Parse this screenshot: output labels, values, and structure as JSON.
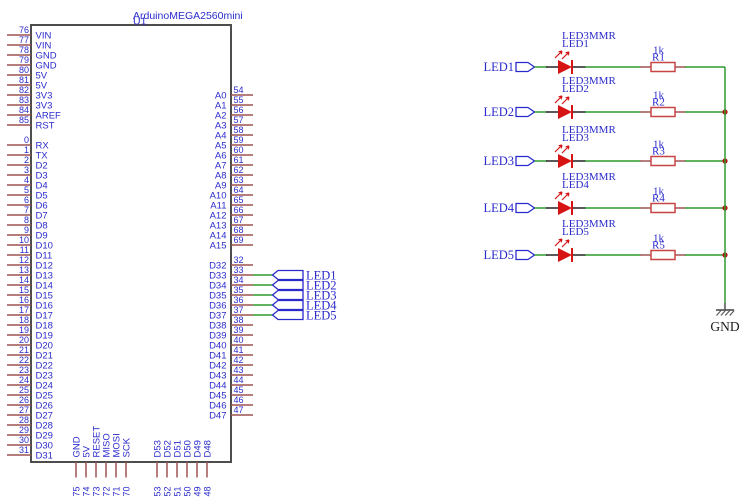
{
  "schematic": {
    "component": {
      "title": "ArduinoMEGA2560mini",
      "refdes": "U1"
    },
    "pins": {
      "left_power": [
        {
          "num": "76",
          "name": "VIN"
        },
        {
          "num": "77",
          "name": "VIN"
        },
        {
          "num": "78",
          "name": "GND"
        },
        {
          "num": "79",
          "name": "GND"
        },
        {
          "num": "80",
          "name": "5V"
        },
        {
          "num": "81",
          "name": "5V"
        },
        {
          "num": "82",
          "name": "3V3"
        },
        {
          "num": "83",
          "name": "3V3"
        },
        {
          "num": "84",
          "name": "AREF"
        },
        {
          "num": "85",
          "name": "RST"
        }
      ],
      "left_digital": [
        {
          "num": "0",
          "name": "RX"
        },
        {
          "num": "1",
          "name": "TX"
        },
        {
          "num": "2",
          "name": "D2"
        },
        {
          "num": "3",
          "name": "D3"
        },
        {
          "num": "4",
          "name": "D4"
        },
        {
          "num": "5",
          "name": "D5"
        },
        {
          "num": "6",
          "name": "D6"
        },
        {
          "num": "7",
          "name": "D7"
        },
        {
          "num": "8",
          "name": "D8"
        },
        {
          "num": "9",
          "name": "D9"
        },
        {
          "num": "10",
          "name": "D10"
        },
        {
          "num": "11",
          "name": "D11"
        },
        {
          "num": "12",
          "name": "D12"
        },
        {
          "num": "13",
          "name": "D13"
        },
        {
          "num": "14",
          "name": "D14"
        },
        {
          "num": "15",
          "name": "D15"
        },
        {
          "num": "16",
          "name": "D16"
        },
        {
          "num": "17",
          "name": "D17"
        },
        {
          "num": "18",
          "name": "D18"
        },
        {
          "num": "19",
          "name": "D19"
        },
        {
          "num": "20",
          "name": "D20"
        },
        {
          "num": "21",
          "name": "D21"
        },
        {
          "num": "22",
          "name": "D22"
        },
        {
          "num": "23",
          "name": "D23"
        },
        {
          "num": "24",
          "name": "D24"
        },
        {
          "num": "25",
          "name": "D25"
        },
        {
          "num": "26",
          "name": "D26"
        },
        {
          "num": "27",
          "name": "D27"
        },
        {
          "num": "28",
          "name": "D28"
        },
        {
          "num": "29",
          "name": "D29"
        },
        {
          "num": "30",
          "name": "D30"
        },
        {
          "num": "31",
          "name": "D31"
        }
      ],
      "right_analog": [
        {
          "num": "54",
          "name": "A0"
        },
        {
          "num": "55",
          "name": "A1"
        },
        {
          "num": "56",
          "name": "A2"
        },
        {
          "num": "57",
          "name": "A3"
        },
        {
          "num": "58",
          "name": "A4"
        },
        {
          "num": "59",
          "name": "A5"
        },
        {
          "num": "60",
          "name": "A6"
        },
        {
          "num": "61",
          "name": "A7"
        },
        {
          "num": "62",
          "name": "A8"
        },
        {
          "num": "63",
          "name": "A9"
        },
        {
          "num": "64",
          "name": "A10"
        },
        {
          "num": "65",
          "name": "A11"
        },
        {
          "num": "66",
          "name": "A12"
        },
        {
          "num": "67",
          "name": "A13"
        },
        {
          "num": "68",
          "name": "A14"
        },
        {
          "num": "69",
          "name": "A15"
        }
      ],
      "right_digital": [
        {
          "num": "32",
          "name": "D32"
        },
        {
          "num": "33",
          "name": "D33"
        },
        {
          "num": "34",
          "name": "D34"
        },
        {
          "num": "35",
          "name": "D35"
        },
        {
          "num": "36",
          "name": "D36"
        },
        {
          "num": "37",
          "name": "D37"
        },
        {
          "num": "38",
          "name": "D38"
        },
        {
          "num": "39",
          "name": "D39"
        },
        {
          "num": "40",
          "name": "D40"
        },
        {
          "num": "41",
          "name": "D41"
        },
        {
          "num": "42",
          "name": "D42"
        },
        {
          "num": "43",
          "name": "D43"
        },
        {
          "num": "44",
          "name": "D44"
        },
        {
          "num": "45",
          "name": "D45"
        },
        {
          "num": "46",
          "name": "D46"
        },
        {
          "num": "47",
          "name": "D47"
        }
      ],
      "bottom_power": [
        {
          "num": "75",
          "name": "GND"
        },
        {
          "num": "74",
          "name": "5V"
        },
        {
          "num": "73",
          "name": "RESET"
        },
        {
          "num": "72",
          "name": "MISO"
        },
        {
          "num": "71",
          "name": "MOSI"
        },
        {
          "num": "70",
          "name": "SCK"
        }
      ],
      "bottom_digital": [
        {
          "num": "53",
          "name": "D53"
        },
        {
          "num": "52",
          "name": "D52"
        },
        {
          "num": "51",
          "name": "D51"
        },
        {
          "num": "50",
          "name": "D50"
        },
        {
          "num": "49",
          "name": "D49"
        },
        {
          "num": "48",
          "name": "D48"
        }
      ]
    },
    "net_flags": [
      "LED1",
      "LED2",
      "LED3",
      "LED4",
      "LED5"
    ],
    "led_circuits": [
      {
        "input_label": "LED1",
        "led_value": "LED3MMR",
        "led_name": "LED1",
        "res_value": "1k",
        "res_name": "R1"
      },
      {
        "input_label": "LED2",
        "led_value": "LED3MMR",
        "led_name": "LED2",
        "res_value": "1k",
        "res_name": "R2"
      },
      {
        "input_label": "LED3",
        "led_value": "LED3MMR",
        "led_name": "LED3",
        "res_value": "1k",
        "res_name": "R3"
      },
      {
        "input_label": "LED4",
        "led_value": "LED3MMR",
        "led_name": "LED4",
        "res_value": "1k",
        "res_name": "R4"
      },
      {
        "input_label": "LED5",
        "led_value": "LED3MMR",
        "led_name": "LED5",
        "res_value": "1k",
        "res_name": "R5"
      }
    ],
    "ground_label": "GND",
    "colors": {
      "text_blue": "#2b2bcc",
      "pin_red": "#9e5252",
      "wire_green": "#2f9b2f",
      "symbol_red": "#c84444",
      "led_red": "#d61414",
      "junction_red": "#b31212",
      "frame_gray": "#4d4d4d",
      "ground_gray": "#5a5a5a",
      "ground_text": "#1b1b1b"
    }
  }
}
